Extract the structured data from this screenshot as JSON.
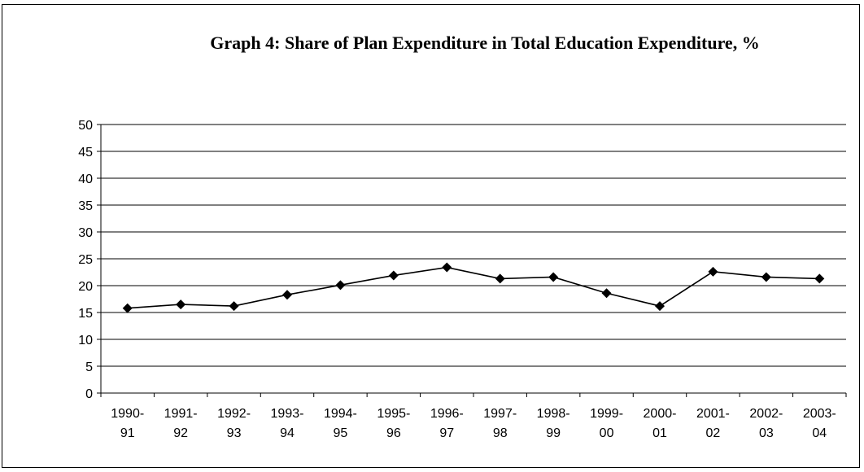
{
  "chart_data": {
    "type": "line",
    "title": "Graph 4: Share of Plan Expenditure in Total Education Expenditure, %",
    "xlabel": "",
    "ylabel": "",
    "categories": [
      [
        "1990-",
        "91"
      ],
      [
        "1991-",
        "92"
      ],
      [
        "1992-",
        "93"
      ],
      [
        "1993-",
        "94"
      ],
      [
        "1994-",
        "95"
      ],
      [
        "1995-",
        "96"
      ],
      [
        "1996-",
        "97"
      ],
      [
        "1997-",
        "98"
      ],
      [
        "1998-",
        "99"
      ],
      [
        "1999-",
        "00"
      ],
      [
        "2000-",
        "01"
      ],
      [
        "2001-",
        "02"
      ],
      [
        "2002-",
        "03"
      ],
      [
        "2003-",
        "04"
      ]
    ],
    "series": [
      {
        "values": [
          15.8,
          16.5,
          16.2,
          18.3,
          20.1,
          21.9,
          23.4,
          21.3,
          21.6,
          18.6,
          16.2,
          22.6,
          21.6,
          21.3
        ],
        "color": "#000000",
        "marker": "diamond"
      }
    ],
    "ylim": [
      0,
      50
    ],
    "yticks": [
      0,
      5,
      10,
      15,
      20,
      25,
      30,
      35,
      40,
      45,
      50
    ],
    "grid": true,
    "legend": "none"
  }
}
